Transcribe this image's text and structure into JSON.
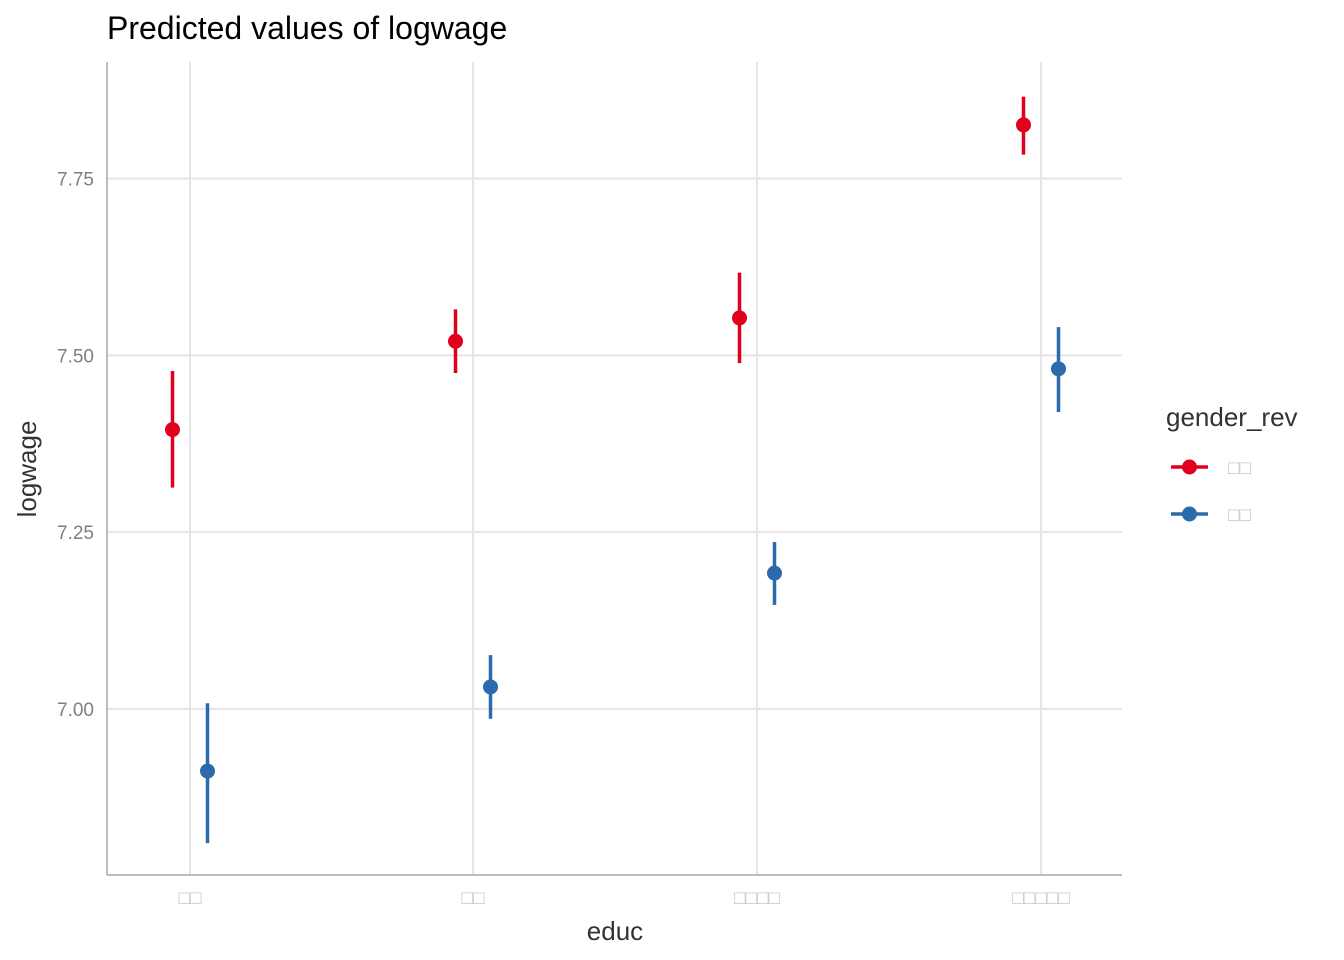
{
  "chart_data": {
    "type": "scatter",
    "title": "Predicted values of logwage",
    "xlabel": "educ",
    "ylabel": "logwage",
    "categories": [
      "□□",
      "□□",
      "□□□□",
      "□□□□□"
    ],
    "yticks": [
      7.0,
      7.25,
      7.5,
      7.75
    ],
    "ytick_labels": [
      "7.00",
      "7.25",
      "7.50",
      "7.75"
    ],
    "ylim": [
      6.765,
      7.915
    ],
    "grid": true,
    "legend": {
      "title": "gender_rev",
      "position": "right"
    },
    "series": [
      {
        "name": "□□",
        "color": "#E0001B",
        "values": [
          7.395,
          7.52,
          7.553,
          7.826
        ],
        "ci_low": [
          7.313,
          7.475,
          7.489,
          7.784
        ],
        "ci_high": [
          7.478,
          7.565,
          7.617,
          7.866
        ]
      },
      {
        "name": "□□",
        "color": "#2B6AAC",
        "values": [
          6.912,
          7.031,
          7.192,
          7.481
        ],
        "ci_low": [
          6.81,
          6.986,
          7.147,
          7.42
        ],
        "ci_high": [
          7.008,
          7.076,
          7.236,
          7.54
        ]
      }
    ]
  }
}
